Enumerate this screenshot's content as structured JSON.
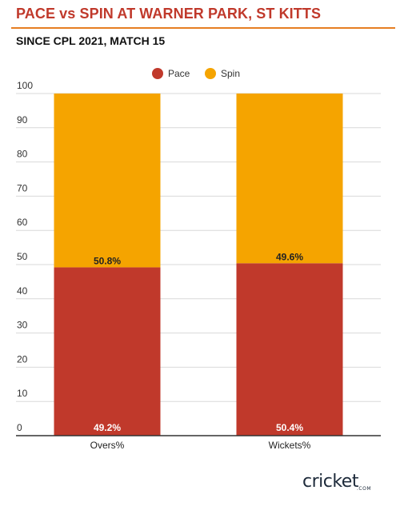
{
  "title": "PACE vs SPIN AT WARNER PARK, ST KITTS",
  "subtitle": "SINCE CPL 2021, MATCH 15",
  "logo": {
    "text": "cricket",
    "sub": ".COM"
  },
  "colors": {
    "pace": "#c0392b",
    "spin": "#f5a400"
  },
  "chart_data": {
    "type": "bar",
    "stacked": true,
    "categories": [
      "Overs%",
      "Wickets%"
    ],
    "series": [
      {
        "name": "Pace",
        "values": [
          49.2,
          50.4
        ],
        "labels": [
          "49.2%",
          "50.4%"
        ],
        "color": "#c0392b"
      },
      {
        "name": "Spin",
        "values": [
          50.8,
          49.6
        ],
        "labels": [
          "50.8%",
          "49.6%"
        ],
        "color": "#f5a400"
      }
    ],
    "yticks": [
      0,
      10,
      20,
      30,
      40,
      50,
      60,
      70,
      80,
      90,
      100
    ],
    "ylim": [
      0,
      100
    ],
    "grid": true,
    "legend": "top-center"
  }
}
